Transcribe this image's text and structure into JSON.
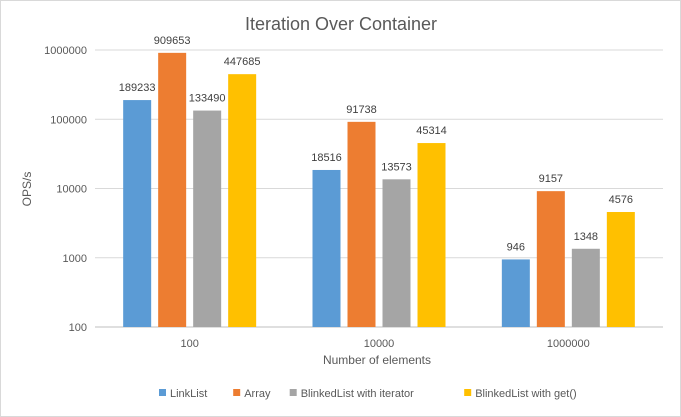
{
  "chart_data": {
    "type": "bar",
    "title": "Iteration Over Container",
    "xlabel": "Number of elements",
    "ylabel": "OPS/s",
    "yscale": "log",
    "ylim": [
      100,
      1000000
    ],
    "yticks": [
      "100",
      "1000",
      "10000",
      "100000",
      "1000000"
    ],
    "grid": true,
    "legend_position": "bottom",
    "categories": [
      "100",
      "10000",
      "1000000"
    ],
    "series": [
      {
        "name": "LinkList",
        "color": "#5b9bd5",
        "values": [
          189233,
          18516,
          946
        ]
      },
      {
        "name": "Array",
        "color": "#ed7d31",
        "values": [
          909653,
          91738,
          9157
        ]
      },
      {
        "name": "BlinkedList with iterator",
        "color": "#a5a5a5",
        "values": [
          133490,
          13573,
          1348
        ]
      },
      {
        "name": "BlinkedList with get()",
        "color": "#ffc000",
        "values": [
          447685,
          45314,
          4576
        ]
      }
    ]
  }
}
